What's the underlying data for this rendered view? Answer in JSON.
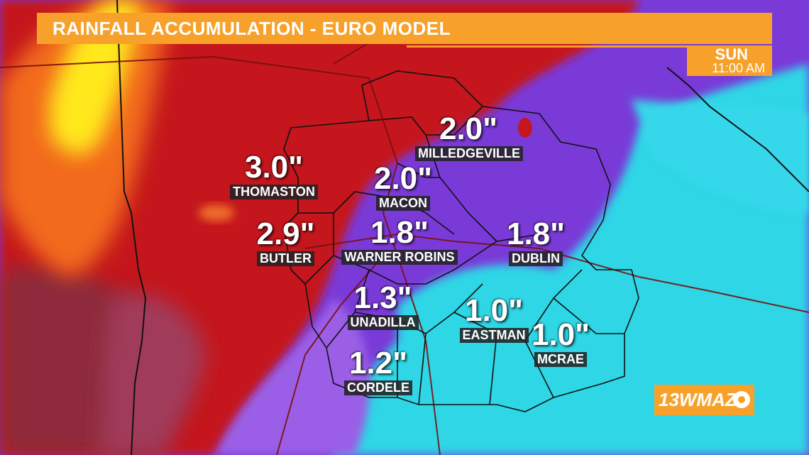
{
  "header": {
    "title": "RAINFALL ACCUMULATION - EURO MODEL"
  },
  "timestamp": {
    "day": "SUN",
    "time": "11:00 AM"
  },
  "cities": [
    {
      "name": "MILLEDGEVILLE",
      "amount": "2.0\""
    },
    {
      "name": "THOMASTON",
      "amount": "3.0\""
    },
    {
      "name": "MACON",
      "amount": "2.0\""
    },
    {
      "name": "BUTLER",
      "amount": "2.9\""
    },
    {
      "name": "WARNER ROBINS",
      "amount": "1.8\""
    },
    {
      "name": "DUBLIN",
      "amount": "1.8\""
    },
    {
      "name": "UNADILLA",
      "amount": "1.3\""
    },
    {
      "name": "EASTMAN",
      "amount": "1.0\""
    },
    {
      "name": "MCRAE",
      "amount": "1.0\""
    },
    {
      "name": "CORDELE",
      "amount": "1.2\""
    }
  ],
  "logo": {
    "text": "13WMAZ",
    "icon": "cbs-eye-icon"
  },
  "colors": {
    "accent": "#f7a12a",
    "heavy_rain": "#c8171c",
    "moderate_rain": "#8a3fd6",
    "light_rain": "#2fd4e6",
    "max_rain": "#ffe81a"
  }
}
